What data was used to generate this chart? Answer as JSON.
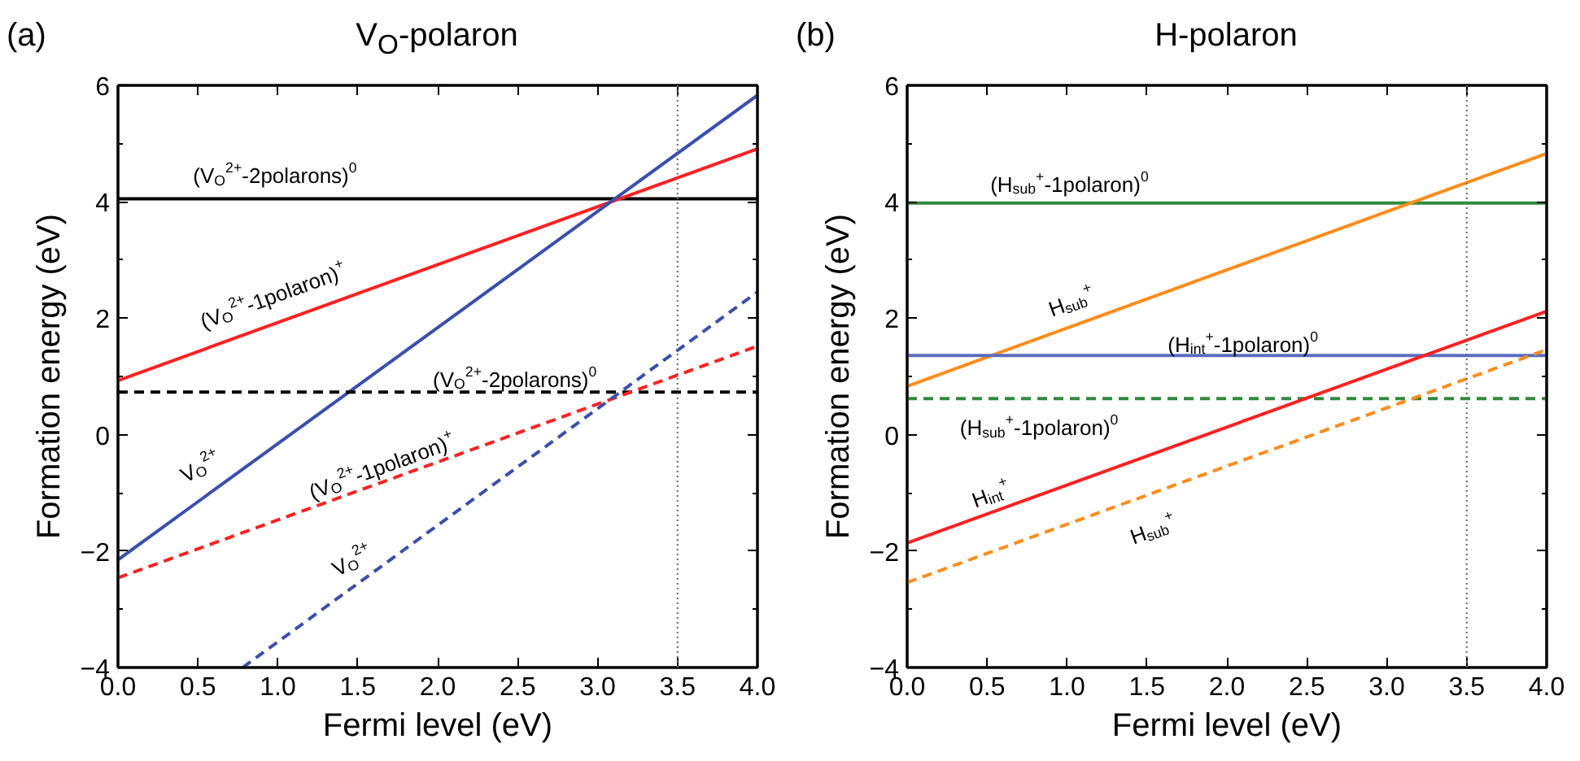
{
  "chart_data": [
    {
      "type": "line",
      "title": "V$_{O}$-polaron",
      "xlabel": "Fermi level (eV)",
      "ylabel": "Formation energy (eV)",
      "xlim": [
        0,
        4
      ],
      "ylim": [
        -4,
        6
      ],
      "xticks": [
        {
          "value": 0,
          "label": "0.0"
        },
        {
          "value": 0.5,
          "label": "0.5"
        },
        {
          "value": 1,
          "label": "1.0"
        },
        {
          "value": 1.5,
          "label": "1.5"
        },
        {
          "value": 2,
          "label": "2.0"
        },
        {
          "value": 2.5,
          "label": "2.5"
        },
        {
          "value": 3,
          "label": "3.0"
        },
        {
          "value": 3.5,
          "label": "3.5"
        },
        {
          "value": 4,
          "label": "4.0"
        }
      ],
      "yticks": [
        -4,
        -2,
        0,
        2,
        4,
        6
      ],
      "series": [
        {
          "name": "(V$_{O}$$^{2+}$-2polarons)$^{0}$",
          "color": "#000000",
          "x": [
            0,
            4
          ],
          "values": [
            4.05,
            4.05
          ]
        },
        {
          "name": "(V$_{O}$$^{2+}$-1polaron)$^{+}$",
          "color": "#ff2020",
          "x": [
            0,
            4
          ],
          "values": [
            0.93,
            4.91
          ]
        },
        {
          "name": "V$_{O}$$^{2+}$",
          "color": "#3a4fb0",
          "x": [
            0,
            4
          ],
          "values": [
            -2.15,
            5.83
          ]
        },
        {
          "name": "(V$_{O}$$^{2+}$-2polarons)$^{0}$",
          "color": "#000000",
          "x": [
            0,
            4
          ],
          "values": [
            0.73,
            0.73
          ],
          "line_style": "dashed"
        },
        {
          "name": "(V$_{O}$$^{2+}$-1polaron)$^{+}$",
          "color": "#ff2020",
          "x": [
            0,
            4
          ],
          "values": [
            -2.46,
            1.52
          ],
          "line_style": "dashed"
        },
        {
          "name": "V$_{O}$$^{2+}$",
          "color": "#3a4fb0",
          "x": [
            0.78,
            4
          ],
          "values": [
            -4,
            2.45
          ],
          "line_style": "dashed"
        }
      ],
      "ref_lines": [
        {
          "axis": "x",
          "value": 3.5,
          "color": "#666666",
          "line_style": "dotted"
        }
      ],
      "annotations": [
        "(a)"
      ]
    },
    {
      "type": "line",
      "title": "H-polaron",
      "xlabel": "Fermi level (eV)",
      "ylabel": "Formation energy (eV)",
      "xlim": [
        0,
        4
      ],
      "ylim": [
        -4,
        6
      ],
      "xticks": [
        {
          "value": 0,
          "label": "0.0"
        },
        {
          "value": 0.5,
          "label": "0.5"
        },
        {
          "value": 1,
          "label": "1.0"
        },
        {
          "value": 1.5,
          "label": "1.5"
        },
        {
          "value": 2,
          "label": "2.0"
        },
        {
          "value": 2.5,
          "label": "2.5"
        },
        {
          "value": 3,
          "label": "3.0"
        },
        {
          "value": 3.5,
          "label": "3.5"
        },
        {
          "value": 4,
          "label": "4.0"
        }
      ],
      "yticks": [
        -4,
        -2,
        0,
        2,
        4,
        6
      ],
      "series": [
        {
          "name": "(H$_{sub}$$^{+}$-1polaron)$^{0}$",
          "color": "#2e8b3a",
          "x": [
            0,
            4
          ],
          "values": [
            3.98,
            3.98
          ]
        },
        {
          "name": "H$_{sub}$$^{+}$",
          "color": "#ff8c1a",
          "x": [
            0,
            4
          ],
          "values": [
            0.83,
            4.83
          ]
        },
        {
          "name": "(H$_{int}$$^{+}$-1polaron)$^{0}$",
          "color": "#5a6cc0",
          "x": [
            0,
            4
          ],
          "values": [
            1.36,
            1.36
          ]
        },
        {
          "name": "(H$_{sub}$$^{+}$-1polaron)$^{0}$",
          "color": "#2e8b3a",
          "x": [
            0,
            4
          ],
          "values": [
            0.62,
            0.62
          ],
          "line_style": "dashed"
        },
        {
          "name": "H$_{int}$$^{+}$",
          "color": "#ff2020",
          "x": [
            0,
            4
          ],
          "values": [
            -1.86,
            2.12
          ]
        },
        {
          "name": "H$_{sub}$$^{+}$",
          "color": "#ff8c1a",
          "x": [
            0,
            4
          ],
          "values": [
            -2.54,
            1.46
          ],
          "line_style": "dashed"
        }
      ],
      "ref_lines": [
        {
          "axis": "x",
          "value": 3.5,
          "color": "#666666",
          "line_style": "dotted"
        }
      ],
      "annotations": [
        "(b)"
      ]
    }
  ]
}
